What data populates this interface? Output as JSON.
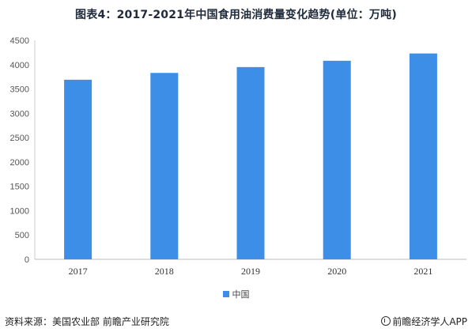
{
  "chart_data": {
    "type": "bar",
    "title": "图表4：2017-2021年中国食用油消费量变化趋势(单位：万吨)",
    "categories": [
      "2017",
      "2018",
      "2019",
      "2020",
      "2021"
    ],
    "series": [
      {
        "name": "中国",
        "values": [
          3690,
          3830,
          3950,
          4080,
          4230
        ]
      }
    ],
    "ylim": [
      0,
      4500
    ],
    "yticks": [
      "0",
      "500",
      "1000",
      "1500",
      "2000",
      "2500",
      "3000",
      "3500",
      "4000",
      "4500"
    ],
    "grid": false,
    "legend": "bottom",
    "bar_color": "#3d8ee6"
  },
  "footer": {
    "source": "资料来源：美国农业部 前瞻产业研究院",
    "brand": "前瞻经济学人APP"
  },
  "icons": {
    "brand": "qianzhan-logo-icon"
  }
}
